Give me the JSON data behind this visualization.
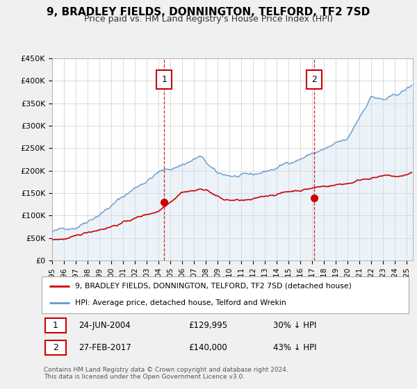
{
  "title": "9, BRADLEY FIELDS, DONNINGTON, TELFORD, TF2 7SD",
  "subtitle": "Price paid vs. HM Land Registry's House Price Index (HPI)",
  "background_color": "#f0f0f0",
  "plot_bg_color": "#ffffff",
  "xmin": 1995.0,
  "xmax": 2025.5,
  "ymin": 0,
  "ymax": 450000,
  "yticks": [
    0,
    50000,
    100000,
    150000,
    200000,
    250000,
    300000,
    350000,
    400000,
    450000
  ],
  "ytick_labels": [
    "£0",
    "£50K",
    "£100K",
    "£150K",
    "£200K",
    "£250K",
    "£300K",
    "£350K",
    "£400K",
    "£450K"
  ],
  "xticks": [
    1995,
    1996,
    1997,
    1998,
    1999,
    2000,
    2001,
    2002,
    2003,
    2004,
    2005,
    2006,
    2007,
    2008,
    2009,
    2010,
    2011,
    2012,
    2013,
    2014,
    2015,
    2016,
    2017,
    2018,
    2019,
    2020,
    2021,
    2022,
    2023,
    2024,
    2025
  ],
  "sale1_x": 2004.48,
  "sale1_y": 129995,
  "sale1_date": "24-JUN-2004",
  "sale1_price": "£129,995",
  "sale1_hpi": "30% ↓ HPI",
  "sale2_x": 2017.16,
  "sale2_y": 140000,
  "sale2_date": "27-FEB-2017",
  "sale2_price": "£140,000",
  "sale2_hpi": "43% ↓ HPI",
  "red_color": "#cc0000",
  "blue_color": "#6699cc",
  "blue_fill_color": "#c8ddf0",
  "legend_text_red": "9, BRADLEY FIELDS, DONNINGTON, TELFORD, TF2 7SD (detached house)",
  "legend_text_blue": "HPI: Average price, detached house, Telford and Wrekin",
  "footer1": "Contains HM Land Registry data © Crown copyright and database right 2024.",
  "footer2": "This data is licensed under the Open Government Licence v3.0."
}
